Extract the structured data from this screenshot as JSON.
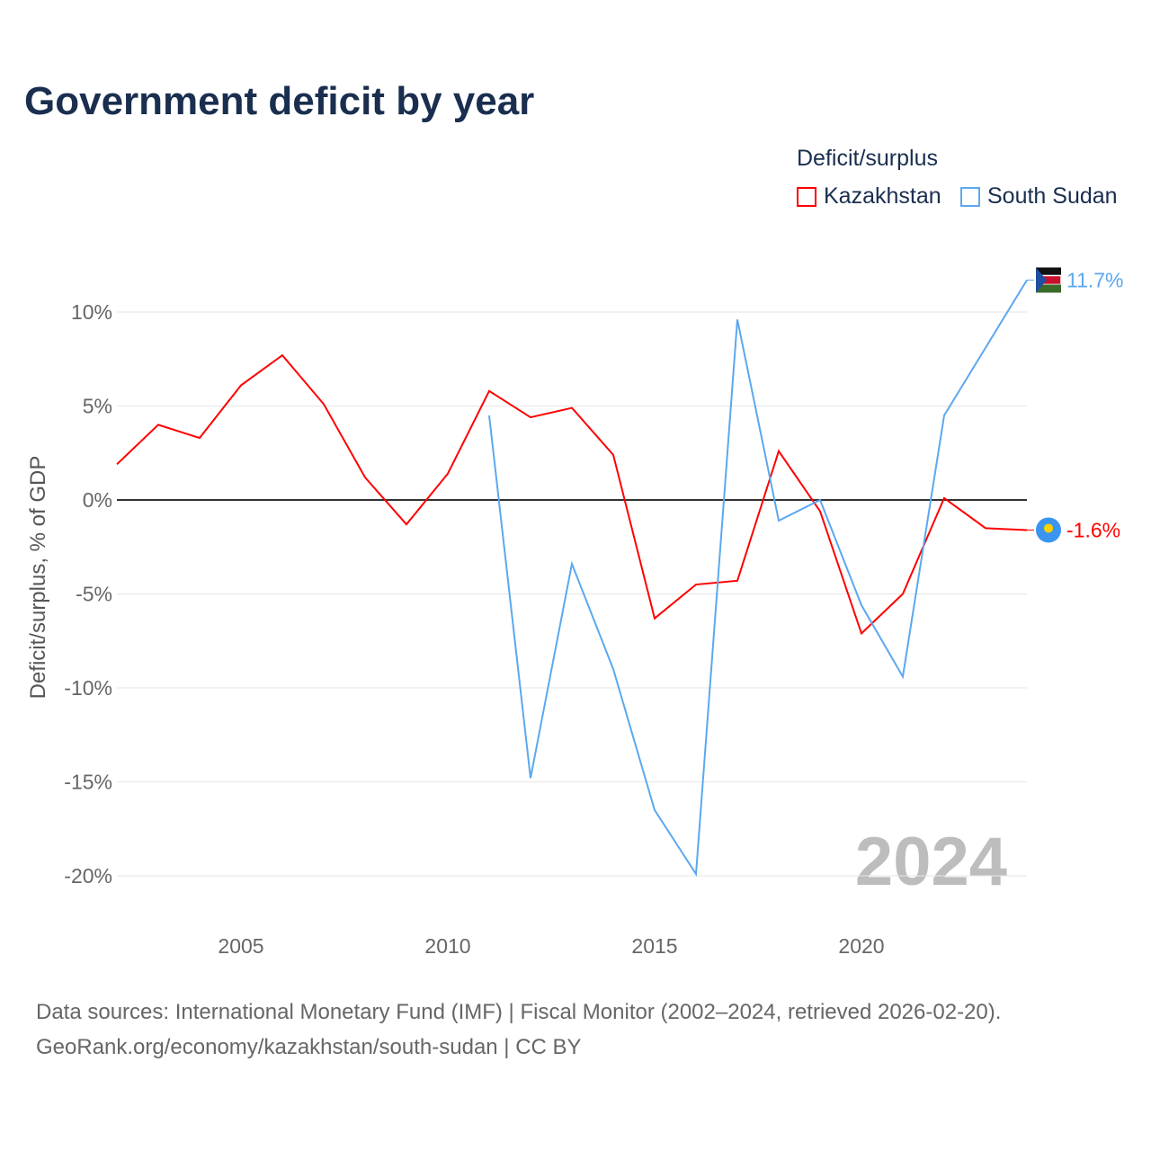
{
  "chart_data": {
    "type": "line",
    "title": "Government deficit by year",
    "ylabel": "Deficit/surplus, % of GDP",
    "xlabel": "",
    "xlim": [
      2002,
      2024
    ],
    "ylim": [
      -22,
      12.5
    ],
    "x_ticks": [
      2005,
      2010,
      2015,
      2020
    ],
    "y_ticks": [
      10,
      5,
      0,
      -5,
      -10,
      -15,
      -20
    ],
    "y_tick_labels": [
      "10%",
      "5%",
      "0%",
      "-5%",
      "-10%",
      "-15%",
      "-20%"
    ],
    "x_tick_labels": [
      "2005",
      "2010",
      "2015",
      "2020"
    ],
    "grid": true,
    "legend": {
      "title": "Deficit/surplus",
      "placement": "top-right"
    },
    "watermark_year": "2024",
    "series": [
      {
        "name": "Kazakhstan",
        "color": "#ff0000",
        "end_label": "-1.6%",
        "x": [
          2002,
          2003,
          2004,
          2005,
          2006,
          2007,
          2008,
          2009,
          2010,
          2011,
          2012,
          2013,
          2014,
          2015,
          2016,
          2017,
          2018,
          2019,
          2020,
          2021,
          2022,
          2023,
          2024
        ],
        "values": [
          1.9,
          4.0,
          3.3,
          6.1,
          7.7,
          5.1,
          1.2,
          -1.3,
          1.4,
          5.8,
          4.4,
          4.9,
          2.4,
          -6.3,
          -4.5,
          -4.3,
          2.6,
          -0.6,
          -7.1,
          -5.0,
          0.1,
          -1.5,
          -1.6
        ]
      },
      {
        "name": "South Sudan",
        "color": "#5ba8f0",
        "end_label": "11.7%",
        "x": [
          2011,
          2012,
          2013,
          2014,
          2015,
          2016,
          2017,
          2018,
          2019,
          2020,
          2021,
          2022,
          2023,
          2024
        ],
        "values": [
          4.5,
          -14.8,
          -3.4,
          -9.0,
          -16.5,
          -19.9,
          9.6,
          -1.1,
          0.0,
          -5.6,
          -9.4,
          4.5,
          8.1,
          11.7
        ]
      }
    ]
  },
  "footer": {
    "line1": "Data sources: International Monetary Fund (IMF) | Fiscal Monitor (2002–2024, retrieved 2026-02-20).",
    "line2": "GeoRank.org/economy/kazakhstan/south-sudan | CC BY"
  }
}
